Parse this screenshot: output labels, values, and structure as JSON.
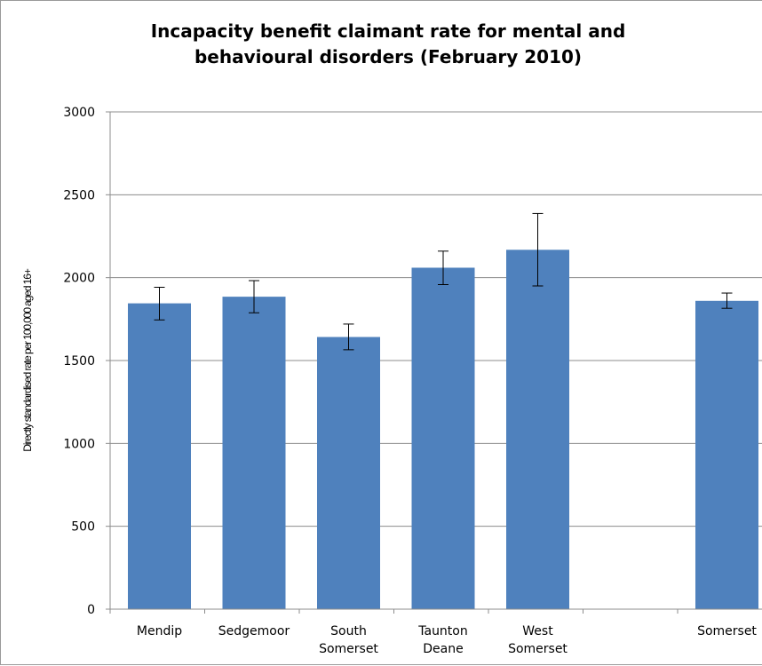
{
  "chart_data": {
    "type": "bar",
    "title_lines": [
      "Incapacity benefit claimant rate for mental and",
      "behavioural disorders (February 2010)"
    ],
    "ylabel": "Directly standardised rate per 100,000 aged 16+",
    "xlabel": "",
    "ylim": [
      0,
      3000
    ],
    "yticks": [
      0,
      500,
      1000,
      1500,
      2000,
      2500,
      3000
    ],
    "grid": true,
    "bar_color": "#4f81bd",
    "categories": [
      [
        "Mendip"
      ],
      [
        "Sedgemoor"
      ],
      [
        "South",
        "Somerset"
      ],
      [
        "Taunton",
        "Deane"
      ],
      [
        "West",
        "Somerset"
      ],
      [
        ""
      ],
      [
        "Somerset"
      ]
    ],
    "values": [
      1845,
      1885,
      1642,
      2060,
      2168,
      null,
      1860
    ],
    "error_low": [
      1745,
      1788,
      1565,
      1958,
      1950,
      null,
      1815
    ],
    "error_high": [
      1942,
      1982,
      1720,
      2160,
      2387,
      null,
      1907
    ]
  }
}
